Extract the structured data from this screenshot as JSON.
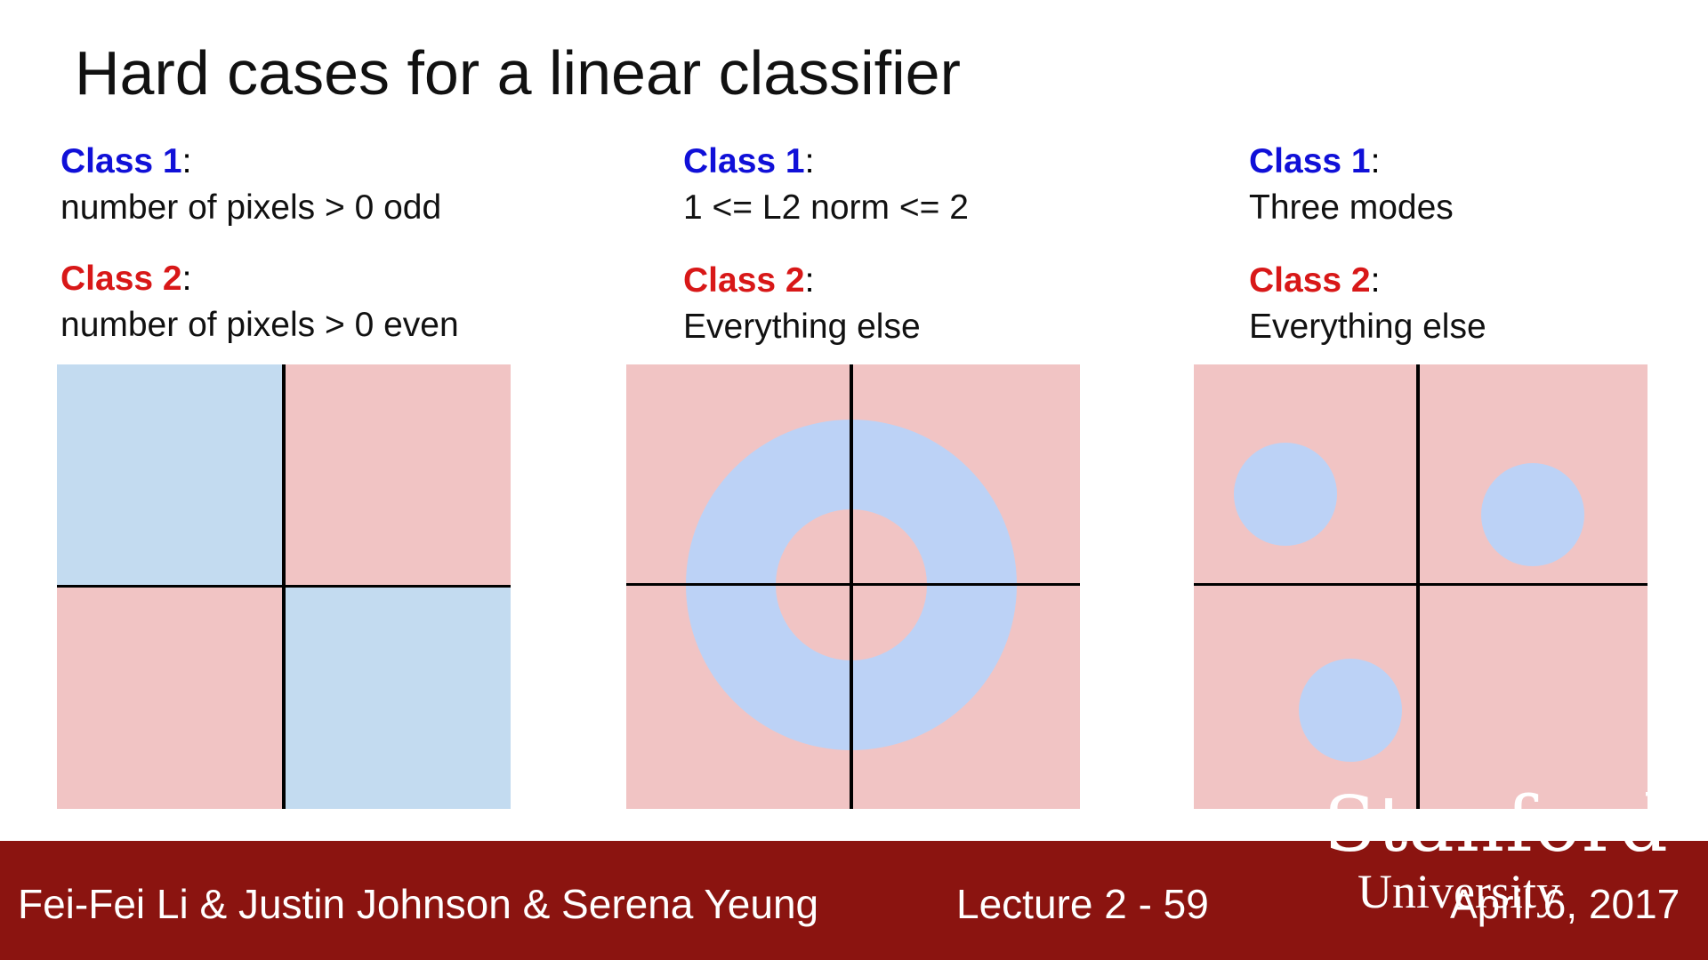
{
  "slide": {
    "title": "Hard cases for a linear classifier"
  },
  "columns": [
    {
      "class1_label": "Class 1",
      "class1_desc": "number of pixels > 0 odd",
      "class2_label": "Class 2",
      "class2_desc": "number of pixels > 0 even"
    },
    {
      "class1_label": "Class 1",
      "class1_desc": "1 <= L2 norm <= 2",
      "class2_label": "Class 2",
      "class2_desc": "Everything else"
    },
    {
      "class1_label": "Class 1",
      "class1_desc": "Three modes",
      "class2_label": "Class 2",
      "class2_desc": "Everything else"
    }
  ],
  "colors": {
    "class1_blue": "#1010d8",
    "class2_red": "#d81818",
    "region_blue": "#c3dbf0",
    "region_blue_alt": "#bcd2f6",
    "region_pink": "#f1c4c4",
    "footer_bg": "#8b1410"
  },
  "footer": {
    "authors": "Fei-Fei Li & Justin Johnson & Serena Yeung",
    "lecture": "Lecture 2 -   59",
    "date": "April 6, 2017",
    "logo_line1": "Stanford",
    "logo_line2": "University"
  }
}
